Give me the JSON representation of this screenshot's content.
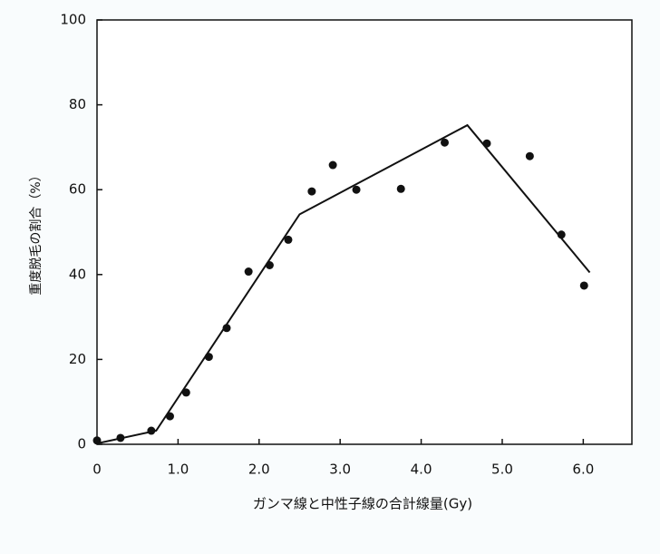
{
  "chart_data": {
    "type": "scatter",
    "x_label": "ガンマ線と中性子線の合計線量(Gy)",
    "y_label": "重度脱毛の割合（%）",
    "xlim": [
      0,
      6.6
    ],
    "ylim": [
      0,
      100
    ],
    "xticks": [
      0,
      {
        "value": 1,
        "label": "1.0"
      },
      {
        "value": 2,
        "label": "2.0"
      },
      {
        "value": 3,
        "label": "3.0"
      },
      {
        "value": 4,
        "label": "4.0"
      },
      {
        "value": 5,
        "label": "5.0"
      },
      {
        "value": 6,
        "label": "6.0"
      }
    ],
    "yticks": [
      0,
      20,
      40,
      60,
      80,
      100
    ],
    "series": [
      {
        "style": "markers",
        "color": "#111111",
        "x": [
          0,
          0.29,
          0.67,
          0.9,
          1.1,
          1.38,
          1.6,
          1.87,
          2.13,
          2.36,
          2.65,
          2.91,
          3.2,
          3.75,
          4.29,
          4.81,
          5.34,
          5.73,
          6.01
        ],
        "values": [
          0.9,
          1.5,
          3.2,
          6.6,
          12.2,
          20.6,
          27.4,
          40.7,
          42.2,
          48.2,
          59.6,
          65.8,
          60,
          60.2,
          71.1,
          70.9,
          67.9,
          49.4,
          37.4
        ]
      },
      {
        "style": "line",
        "color": "#111111",
        "x": [
          0,
          0.73,
          2.5,
          4.57,
          6.08
        ],
        "values": [
          0.2,
          3.2,
          54.2,
          75.2,
          40.5
        ]
      }
    ]
  }
}
